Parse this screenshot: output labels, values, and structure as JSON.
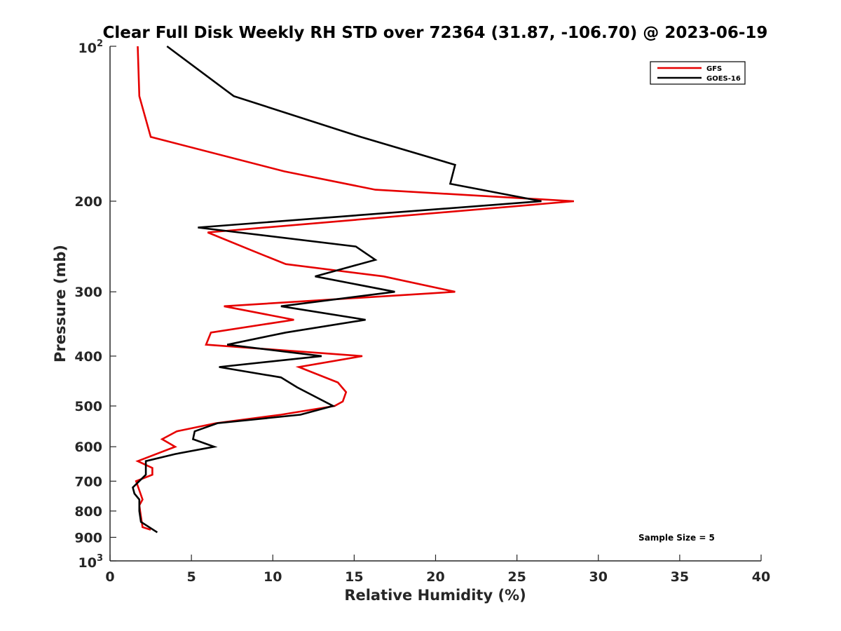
{
  "chart_data": {
    "type": "line",
    "title": "Clear Full Disk Weekly RH STD over 72364 (31.87, -106.70) @ 2023-06-19",
    "xlabel": "Relative Humidity (%)",
    "ylabel": "Pressure (mb)",
    "xlim": [
      0,
      40
    ],
    "ylim": [
      100,
      1000
    ],
    "y_scale": "log",
    "y_reversed": true,
    "x_ticks": [
      "0",
      "5",
      "10",
      "15",
      "20",
      "25",
      "30",
      "35",
      "40"
    ],
    "x_tick_values": [
      0,
      5,
      10,
      15,
      20,
      25,
      30,
      35,
      40
    ],
    "y_ticks": [
      {
        "value": 100,
        "base": "10",
        "exp": "2"
      },
      {
        "value": 200,
        "label": "200"
      },
      {
        "value": 300,
        "label": "300"
      },
      {
        "value": 400,
        "label": "400"
      },
      {
        "value": 500,
        "label": "500"
      },
      {
        "value": 600,
        "label": "600"
      },
      {
        "value": 700,
        "label": "700"
      },
      {
        "value": 800,
        "label": "800"
      },
      {
        "value": 900,
        "label": "900"
      },
      {
        "value": 1000,
        "base": "10",
        "exp": "3"
      }
    ],
    "legend_position": "top-right",
    "annotation": "Sample Size = 5",
    "series": [
      {
        "name": "GFS",
        "color": "#e60000",
        "points": [
          [
            1.7,
            100
          ],
          [
            1.8,
            125
          ],
          [
            2.5,
            150
          ],
          [
            10.7,
            175
          ],
          [
            16.3,
            190
          ],
          [
            28.5,
            200
          ],
          [
            6.0,
            230
          ],
          [
            8.8,
            250
          ],
          [
            10.8,
            265
          ],
          [
            16.8,
            280
          ],
          [
            21.2,
            300
          ],
          [
            7.0,
            320
          ],
          [
            11.3,
            340
          ],
          [
            6.2,
            360
          ],
          [
            5.9,
            380
          ],
          [
            15.5,
            400
          ],
          [
            11.6,
            420
          ],
          [
            14.0,
            450
          ],
          [
            14.5,
            470
          ],
          [
            14.3,
            490
          ],
          [
            13.8,
            500
          ],
          [
            10.5,
            520
          ],
          [
            6.5,
            540
          ],
          [
            4.1,
            560
          ],
          [
            3.2,
            580
          ],
          [
            4.0,
            600
          ],
          [
            1.7,
            640
          ],
          [
            2.6,
            660
          ],
          [
            2.6,
            680
          ],
          [
            1.6,
            700
          ],
          [
            2.0,
            760
          ],
          [
            1.8,
            780
          ],
          [
            1.9,
            820
          ],
          [
            2.0,
            860
          ],
          [
            2.5,
            870
          ]
        ]
      },
      {
        "name": "GOES-16",
        "color": "#000000",
        "points": [
          [
            3.5,
            100
          ],
          [
            7.6,
            125
          ],
          [
            15.4,
            150
          ],
          [
            21.2,
            170
          ],
          [
            20.9,
            185
          ],
          [
            26.5,
            200
          ],
          [
            5.4,
            225
          ],
          [
            15.1,
            245
          ],
          [
            16.3,
            260
          ],
          [
            12.6,
            280
          ],
          [
            17.5,
            300
          ],
          [
            10.5,
            320
          ],
          [
            15.7,
            340
          ],
          [
            10.8,
            360
          ],
          [
            7.2,
            380
          ],
          [
            13.0,
            400
          ],
          [
            6.7,
            420
          ],
          [
            10.5,
            440
          ],
          [
            11.5,
            460
          ],
          [
            13.7,
            500
          ],
          [
            11.7,
            520
          ],
          [
            6.6,
            540
          ],
          [
            5.2,
            560
          ],
          [
            5.1,
            580
          ],
          [
            6.4,
            600
          ],
          [
            4.0,
            620
          ],
          [
            2.2,
            640
          ],
          [
            2.2,
            680
          ],
          [
            1.4,
            720
          ],
          [
            1.5,
            740
          ],
          [
            1.8,
            760
          ],
          [
            1.8,
            800
          ],
          [
            1.9,
            840
          ],
          [
            2.9,
            880
          ]
        ]
      }
    ]
  }
}
